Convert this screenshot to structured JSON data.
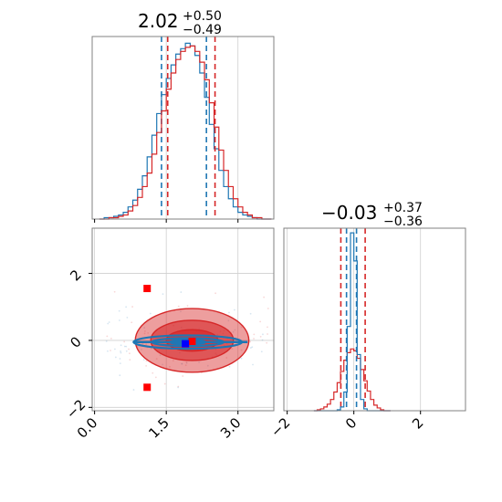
{
  "chart_data": [
    {
      "type": "histogram",
      "panel": "marginal-x",
      "title": {
        "value": "2.02",
        "plus": "+0.50",
        "minus": "−0.49"
      },
      "xlim": [
        -0.05,
        3.75
      ],
      "grid": true,
      "bin_centers": [
        0.15,
        0.25,
        0.35,
        0.45,
        0.55,
        0.65,
        0.75,
        0.85,
        0.95,
        1.05,
        1.15,
        1.25,
        1.35,
        1.45,
        1.55,
        1.65,
        1.75,
        1.85,
        1.95,
        2.05,
        2.15,
        2.25,
        2.35,
        2.45,
        2.55,
        2.65,
        2.75,
        2.85,
        2.95,
        3.05,
        3.15,
        3.25,
        3.35,
        3.45,
        3.55,
        3.65
      ],
      "series": [
        {
          "color": "#1f77b4",
          "values": [
            0,
            1,
            1,
            2,
            3,
            5,
            9,
            14,
            22,
            32,
            46,
            62,
            78,
            92,
            104,
            114,
            122,
            126,
            130,
            128,
            121,
            108,
            90,
            70,
            52,
            36,
            24,
            15,
            9,
            5,
            3,
            2,
            1,
            0,
            0,
            0
          ],
          "quantile_lines": [
            1.4,
            2.34
          ]
        },
        {
          "color": "#d62728",
          "values": [
            0,
            0,
            1,
            1,
            2,
            3,
            6,
            10,
            16,
            24,
            34,
            48,
            64,
            80,
            96,
            108,
            118,
            124,
            127,
            128,
            124,
            116,
            103,
            86,
            68,
            51,
            36,
            24,
            15,
            9,
            5,
            3,
            1,
            1,
            0,
            0
          ],
          "quantile_lines": [
            1.53,
            2.52
          ]
        }
      ]
    },
    {
      "type": "contour",
      "panel": "joint",
      "xlim": [
        -0.05,
        3.75
      ],
      "ylim": [
        -2.1,
        3.35
      ],
      "x_ticks": [
        "0.0",
        "1.5",
        "3.0"
      ],
      "y_ticks": [
        "−2",
        "0",
        "2"
      ],
      "grid": true,
      "red_contours": [
        {
          "center": [
            2.04,
            0.0
          ],
          "rx": 2.2,
          "ry": 0.95,
          "opacity": 0.45
        },
        {
          "center": [
            2.04,
            0.0
          ],
          "rx": 1.6,
          "ry": 0.6,
          "opacity": 0.6
        },
        {
          "center": [
            2.04,
            0.0
          ],
          "rx": 1.0,
          "ry": 0.32,
          "opacity": 0.7
        }
      ],
      "blue_contours": [
        {
          "center": [
            1.95,
            -0.05
          ],
          "rx": 2.1,
          "ry": 0.2
        },
        {
          "center": [
            1.95,
            -0.05
          ],
          "rx": 1.4,
          "ry": 0.12
        },
        {
          "center": [
            1.95,
            -0.05
          ],
          "rx": 0.7,
          "ry": 0.07
        }
      ],
      "markers": [
        {
          "x": 1.1,
          "y": 1.55,
          "color": "#ff0000"
        },
        {
          "x": 1.1,
          "y": -1.4,
          "color": "#ff0000"
        },
        {
          "x": 2.04,
          "y": -0.03,
          "color": "#ff0000"
        },
        {
          "x": 1.9,
          "y": -0.1,
          "color": "#0000ff"
        }
      ]
    },
    {
      "type": "histogram",
      "panel": "marginal-y",
      "title": {
        "value": "−0.03",
        "plus": "+0.37",
        "minus": "−0.36"
      },
      "xlim": [
        -2.1,
        3.35
      ],
      "x_ticks": [
        "−2",
        "0",
        "2"
      ],
      "grid": true,
      "bin_centers": [
        -1.15,
        -1.05,
        -0.95,
        -0.85,
        -0.75,
        -0.65,
        -0.55,
        -0.45,
        -0.35,
        -0.25,
        -0.15,
        -0.05,
        0.05,
        0.15,
        0.25,
        0.35,
        0.45,
        0.55,
        0.65,
        0.75,
        0.85,
        0.95,
        1.05
      ],
      "series": [
        {
          "color": "#d62728",
          "values": [
            0,
            1,
            2,
            4,
            7,
            12,
            20,
            30,
            42,
            54,
            62,
            66,
            64,
            56,
            44,
            32,
            21,
            12,
            6,
            3,
            1,
            0,
            0
          ],
          "quantile_lines": [
            -0.39,
            0.34
          ]
        },
        {
          "color": "#1f77b4",
          "values": [
            0,
            0,
            0,
            0,
            0,
            0,
            0,
            1,
            4,
            20,
            90,
            190,
            160,
            60,
            12,
            2,
            0,
            0,
            0,
            0,
            0,
            0,
            0
          ],
          "quantile_lines": [
            -0.22,
            0.08
          ]
        }
      ]
    }
  ]
}
